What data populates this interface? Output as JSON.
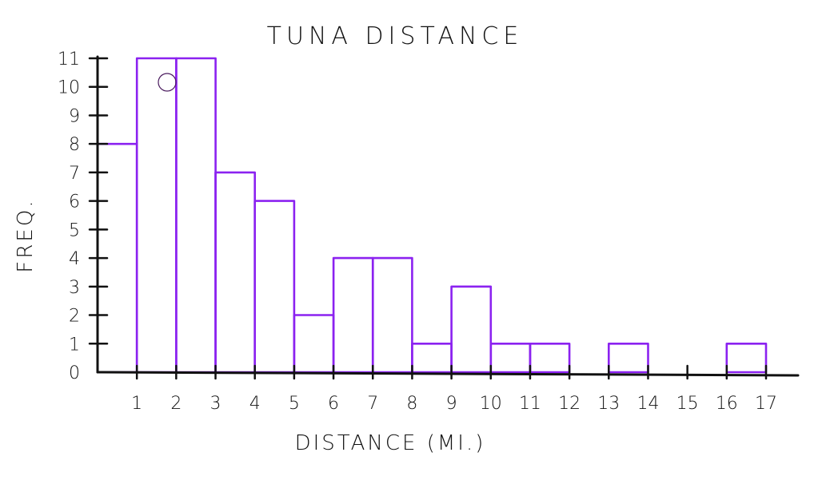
{
  "chart_data": {
    "type": "bar",
    "title": "TUNA DISTANCE",
    "xlabel": "DISTANCE (MI.)",
    "ylabel": "FREQ.",
    "x_ticks": [
      "1",
      "2",
      "3",
      "4",
      "5",
      "6",
      "7",
      "8",
      "9",
      "10",
      "11",
      "12",
      "13",
      "14",
      "15",
      "16",
      "17"
    ],
    "y_ticks": [
      "0",
      "1",
      "2",
      "3",
      "4",
      "5",
      "6",
      "7",
      "8",
      "9",
      "10",
      "11"
    ],
    "bins": [
      {
        "from": 0,
        "to": 1,
        "value": 8
      },
      {
        "from": 1,
        "to": 2,
        "value": 11
      },
      {
        "from": 2,
        "to": 3,
        "value": 11
      },
      {
        "from": 3,
        "to": 4,
        "value": 7
      },
      {
        "from": 4,
        "to": 5,
        "value": 6
      },
      {
        "from": 5,
        "to": 6,
        "value": 2
      },
      {
        "from": 6,
        "to": 7,
        "value": 4
      },
      {
        "from": 7,
        "to": 8,
        "value": 4
      },
      {
        "from": 8,
        "to": 9,
        "value": 1
      },
      {
        "from": 9,
        "to": 10,
        "value": 3
      },
      {
        "from": 10,
        "to": 11,
        "value": 1
      },
      {
        "from": 11,
        "to": 12,
        "value": 1
      },
      {
        "from": 12,
        "to": 13,
        "value": 0
      },
      {
        "from": 13,
        "to": 14,
        "value": 1
      },
      {
        "from": 14,
        "to": 15,
        "value": 0
      },
      {
        "from": 15,
        "to": 16,
        "value": 0
      },
      {
        "from": 16,
        "to": 17,
        "value": 1
      }
    ],
    "xlim": [
      0,
      17
    ],
    "ylim": [
      0,
      11
    ],
    "grid": false,
    "bar_color": "#8b22f0",
    "axis_color": "#111111"
  }
}
